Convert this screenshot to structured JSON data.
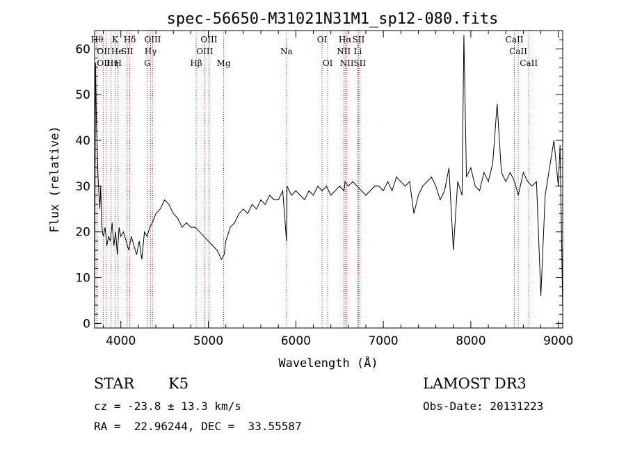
{
  "chart_data": {
    "type": "line",
    "title": "spec-56650-M31021N31M1_sp12-080.fits",
    "xlabel": "Wavelength (Å)",
    "ylabel": "Flux (relative)",
    "xlim": [
      3700,
      9050
    ],
    "ylim": [
      -1,
      64
    ],
    "xticks": [
      4000,
      5000,
      6000,
      7000,
      8000,
      9000
    ],
    "yticks": [
      0,
      10,
      20,
      30,
      40,
      50,
      60
    ],
    "spectrum": {
      "name": "flux",
      "x": [
        3700,
        3710,
        3720,
        3730,
        3740,
        3750,
        3760,
        3770,
        3780,
        3790,
        3800,
        3820,
        3840,
        3860,
        3880,
        3900,
        3920,
        3940,
        3960,
        3980,
        4000,
        4030,
        4060,
        4090,
        4120,
        4150,
        4180,
        4210,
        4240,
        4270,
        4300,
        4330,
        4360,
        4400,
        4450,
        4500,
        4550,
        4600,
        4650,
        4700,
        4750,
        4800,
        4850,
        4900,
        4950,
        5000,
        5050,
        5100,
        5150,
        5180,
        5200,
        5250,
        5300,
        5350,
        5400,
        5450,
        5500,
        5550,
        5600,
        5650,
        5700,
        5750,
        5800,
        5850,
        5893,
        5900,
        5950,
        6000,
        6050,
        6100,
        6150,
        6200,
        6250,
        6300,
        6350,
        6400,
        6450,
        6500,
        6550,
        6563,
        6600,
        6650,
        6700,
        6750,
        6800,
        6850,
        6900,
        6950,
        7000,
        7050,
        7100,
        7150,
        7200,
        7250,
        7300,
        7350,
        7400,
        7450,
        7500,
        7550,
        7600,
        7650,
        7700,
        7750,
        7800,
        7850,
        7900,
        7920,
        7950,
        8000,
        8050,
        8100,
        8150,
        8200,
        8250,
        8300,
        8350,
        8400,
        8450,
        8500,
        8542,
        8600,
        8650,
        8700,
        8750,
        8800,
        8850,
        8900,
        8950,
        9000,
        9020,
        9050
      ],
      "y": [
        0,
        57,
        45,
        38,
        32,
        28,
        25,
        30,
        22,
        20,
        19,
        21,
        17,
        19,
        18,
        22,
        17,
        20,
        15,
        21,
        19,
        20,
        18,
        16,
        19,
        17,
        15,
        18,
        14,
        20,
        19,
        21,
        22,
        24,
        25,
        27,
        26,
        24,
        23,
        21,
        22,
        21,
        21,
        20,
        19,
        18,
        17,
        16,
        14,
        15,
        18,
        21,
        22,
        24,
        25,
        24,
        26,
        25,
        27,
        26,
        28,
        27,
        27,
        29,
        18,
        30,
        28,
        29,
        28,
        27,
        29,
        28,
        30,
        29,
        30,
        28,
        29,
        30,
        29,
        31,
        30,
        31,
        30,
        29,
        28,
        29,
        30,
        30,
        29,
        31,
        29,
        32,
        31,
        30,
        31,
        24,
        28,
        30,
        31,
        32,
        30,
        27,
        29,
        34,
        16,
        31,
        28,
        63,
        32,
        34,
        30,
        29,
        33,
        31,
        35,
        48,
        33,
        31,
        33,
        31,
        28,
        33,
        31,
        30,
        31,
        6,
        28,
        34,
        40,
        30,
        39,
        3
      ]
    },
    "lines": [
      {
        "label": "Hθ",
        "x": 3798,
        "row": 0,
        "side": "r"
      },
      {
        "label": "OII",
        "x": 3727,
        "row": 1,
        "side": "l"
      },
      {
        "label": "OII",
        "x": 3727,
        "row": 2,
        "side": "l"
      },
      {
        "label": "K",
        "x": 3934,
        "row": 0,
        "side": "c"
      },
      {
        "label": "He",
        "x": 3889,
        "row": 1,
        "side": "l"
      },
      {
        "label": "Hη",
        "x": 3835,
        "row": 2,
        "side": "l"
      },
      {
        "label": "H",
        "x": 3968,
        "row": 2,
        "side": "c"
      },
      {
        "label": "SII",
        "x": 4072,
        "row": 1,
        "side": "c"
      },
      {
        "label": "Hδ",
        "x": 4102,
        "row": 0,
        "side": "c"
      },
      {
        "label": "OIII",
        "x": 4363,
        "row": 0,
        "side": "c"
      },
      {
        "label": "Hγ",
        "x": 4340,
        "row": 1,
        "side": "c"
      },
      {
        "label": "G",
        "x": 4304,
        "row": 2,
        "side": "c"
      },
      {
        "label": "OIII",
        "x": 5007,
        "row": 0,
        "side": "c"
      },
      {
        "label": "OIII",
        "x": 4959,
        "row": 1,
        "side": "c"
      },
      {
        "label": "Hβ",
        "x": 4861,
        "row": 2,
        "side": "c"
      },
      {
        "label": "Mg",
        "x": 5175,
        "row": 2,
        "side": "c"
      },
      {
        "label": "Na",
        "x": 5893,
        "row": 1,
        "side": "c"
      },
      {
        "label": "OI",
        "x": 6300,
        "row": 0,
        "side": "c"
      },
      {
        "label": "OI",
        "x": 6364,
        "row": 2,
        "side": "c"
      },
      {
        "label": "Hα",
        "x": 6563,
        "row": 0,
        "side": "c"
      },
      {
        "label": "NII",
        "x": 6548,
        "row": 1,
        "side": "c"
      },
      {
        "label": "NII",
        "x": 6583,
        "row": 2,
        "side": "c"
      },
      {
        "label": "SII",
        "x": 6716,
        "row": 0,
        "side": "c"
      },
      {
        "label": "Li",
        "x": 6708,
        "row": 1,
        "side": "c"
      },
      {
        "label": "SII",
        "x": 6731,
        "row": 2,
        "side": "c"
      },
      {
        "label": "CaII",
        "x": 8498,
        "row": 0,
        "side": "c"
      },
      {
        "label": "CaII",
        "x": 8542,
        "row": 1,
        "side": "c"
      },
      {
        "label": "CaII",
        "x": 8662,
        "row": 2,
        "side": "c"
      }
    ]
  },
  "info": {
    "object_type": "STAR",
    "subclass": "K5",
    "survey": "LAMOST DR3",
    "cz": "cz = -23.8 ± 13.3 km/s",
    "obs_date": "Obs-Date: 20131223",
    "coords": "RA =  22.96244, DEC =  33.55587"
  },
  "colors": {
    "line_marker": "#b22222",
    "axis": "#000000",
    "spectrum": "#000000"
  }
}
